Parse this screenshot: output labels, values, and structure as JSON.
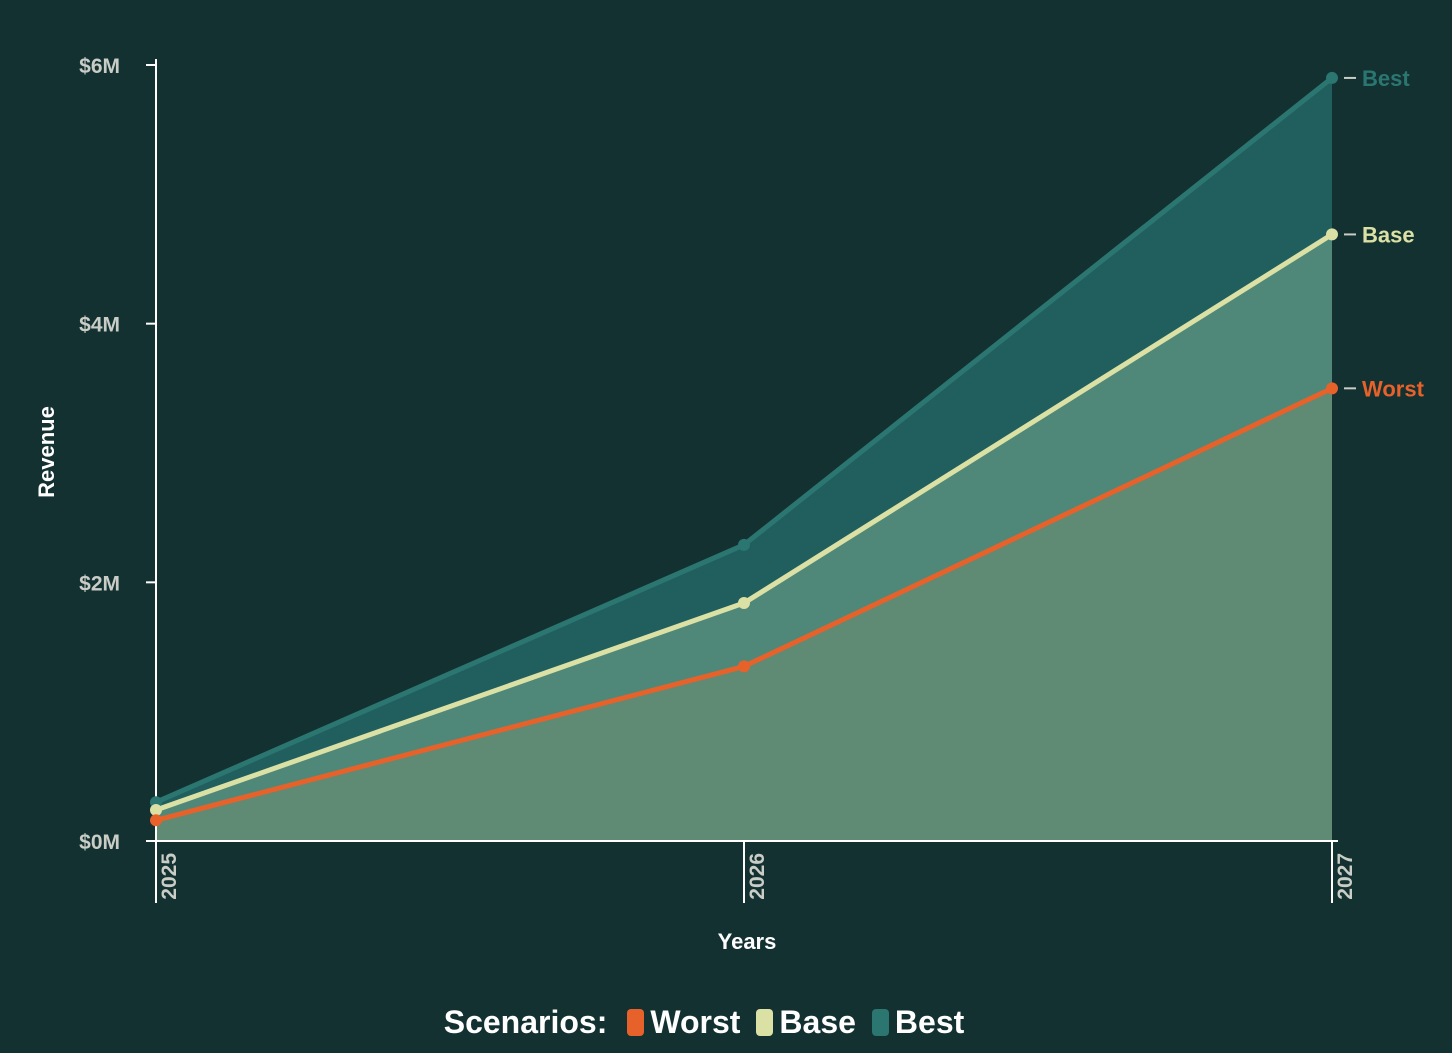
{
  "chart_data": {
    "type": "area",
    "title": "",
    "xlabel": "Years",
    "ylabel": "Revenue",
    "categories": [
      "2025",
      "2026",
      "2027"
    ],
    "y_ticks": [
      {
        "value": 0,
        "label": "$0M"
      },
      {
        "value": 2000000,
        "label": "$2M"
      },
      {
        "value": 4000000,
        "label": "$4M"
      },
      {
        "value": 6000000,
        "label": "$6M"
      }
    ],
    "ylim": [
      0,
      6000000
    ],
    "grid": false,
    "legend_placement": "bottom",
    "legend_title": "Scenarios:",
    "series": [
      {
        "name": "Worst",
        "values": [
          160000,
          1350000,
          3500000
        ],
        "color": "#e6622a",
        "fill": "#5f8a74"
      },
      {
        "name": "Base",
        "values": [
          240000,
          1840000,
          4690000
        ],
        "color": "#dbe0a4",
        "fill": "#4f8878"
      },
      {
        "name": "Best",
        "values": [
          300000,
          2290000,
          5900000
        ],
        "color": "#2b7670",
        "fill": "#215f5f"
      }
    ],
    "axis_color": "#ffffff"
  }
}
